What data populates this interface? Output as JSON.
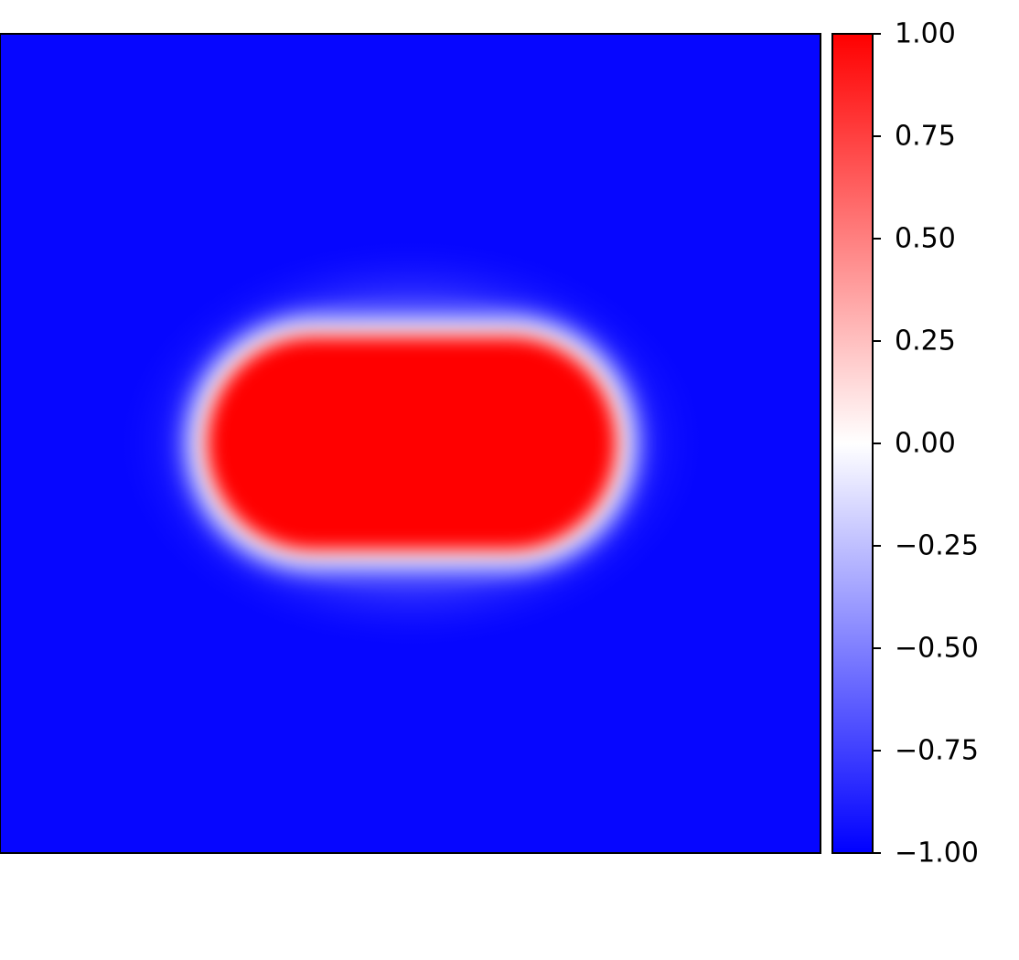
{
  "chart_data": {
    "type": "heatmap",
    "title": "",
    "xlabel": "",
    "ylabel": "",
    "grid": false,
    "field": {
      "description_shape": "elliptical blob",
      "inside_value": 1.0,
      "outside_value": -1.0,
      "interface_value": 0.0
    },
    "colorbar": {
      "colormap": "bwr",
      "vmin": -1.0,
      "vmax": 1.0,
      "ticks": [
        1.0,
        0.75,
        0.5,
        0.25,
        0.0,
        -0.25,
        -0.5,
        -0.75,
        -1.0
      ],
      "tick_labels": [
        "1.00",
        "0.75",
        "0.50",
        "0.25",
        "0.00",
        "−0.25",
        "−0.50",
        "−0.75",
        "−1.00"
      ],
      "colors": {
        "min": "#0000ff",
        "mid": "#ffffff",
        "max": "#ff0000"
      }
    }
  }
}
